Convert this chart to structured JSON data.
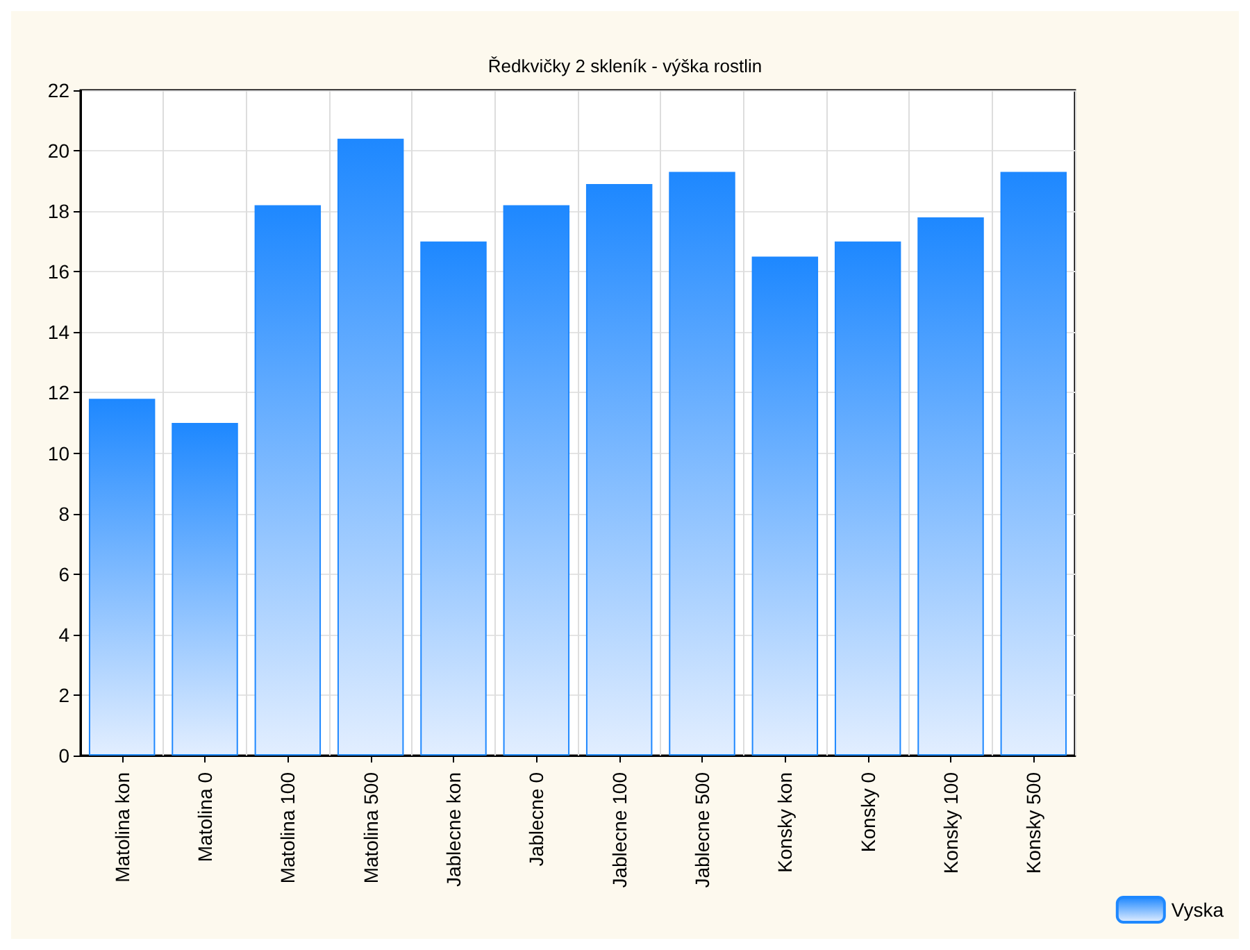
{
  "chart_data": {
    "type": "bar",
    "title": "Ředkvičky 2 skleník - výška rostlin",
    "categories": [
      "Matolina kon",
      "Matolina 0",
      "Matolina 100",
      "Matolina 500",
      "Jablecne kon",
      "Jablecne 0",
      "Jablecne 100",
      "Jablecne 500",
      "Konsky kon",
      "Konsky 0",
      "Konsky 100",
      "Konsky 500"
    ],
    "series": [
      {
        "name": "Vyska",
        "color": "#1e88ff",
        "values": [
          11.8,
          11.0,
          18.2,
          20.4,
          17.0,
          18.2,
          18.9,
          19.3,
          16.5,
          17.0,
          17.8,
          19.3
        ]
      }
    ],
    "ylim": [
      0,
      22
    ],
    "yticks": [
      0,
      2,
      4,
      6,
      8,
      10,
      12,
      14,
      16,
      18,
      20,
      22
    ],
    "grid": true,
    "legend": "bottom right"
  }
}
